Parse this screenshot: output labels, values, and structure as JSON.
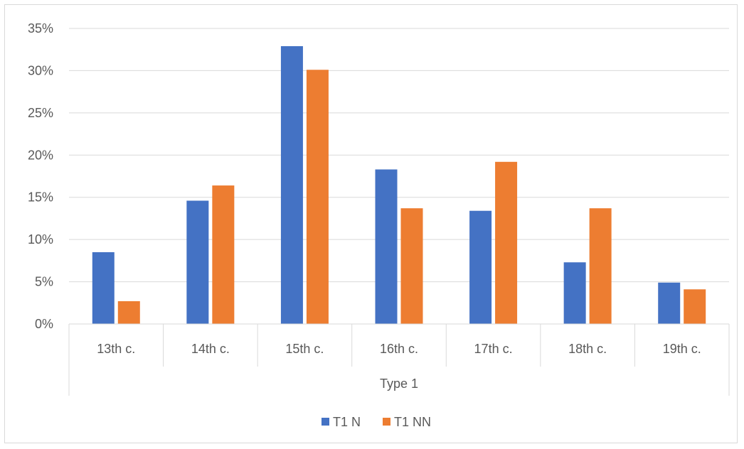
{
  "chart_data": {
    "type": "bar",
    "categories": [
      "13th c.",
      "14th c.",
      "15th c.",
      "16th c.",
      "17th c.",
      "18th c.",
      "19th c."
    ],
    "group_label": "Type 1",
    "series": [
      {
        "name": "T1 N",
        "color": "#4472c4",
        "values": [
          8.5,
          14.6,
          32.9,
          18.3,
          13.4,
          7.3,
          4.9
        ]
      },
      {
        "name": "T1 NN",
        "color": "#ed7d31",
        "values": [
          2.7,
          16.4,
          30.1,
          13.7,
          19.2,
          13.7,
          4.1
        ]
      }
    ],
    "ylim": [
      0,
      35
    ],
    "yticks": [
      0,
      5,
      10,
      15,
      20,
      25,
      30,
      35
    ],
    "ytick_labels": [
      "0%",
      "5%",
      "10%",
      "15%",
      "20%",
      "25%",
      "30%",
      "35%"
    ],
    "grid": true,
    "legend_position": "bottom",
    "title": "",
    "xlabel": "",
    "ylabel": ""
  }
}
